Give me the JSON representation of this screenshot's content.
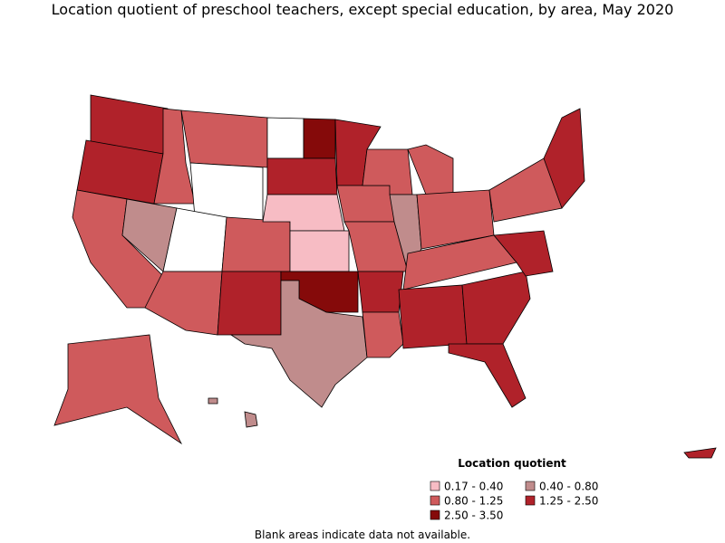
{
  "title": "Location quotient of preschool teachers, except special education, by area, May 2020",
  "legend": {
    "title": "Location quotient",
    "items": [
      {
        "label": "0.17 - 0.40",
        "color": "#f7bcc4"
      },
      {
        "label": "0.40 - 0.80",
        "color": "#c08c8c"
      },
      {
        "label": "0.80 - 1.25",
        "color": "#cf5a5c"
      },
      {
        "label": "1.25 - 2.50",
        "color": "#b0222a"
      },
      {
        "label": "2.50 - 3.50",
        "color": "#850a0a"
      }
    ]
  },
  "note": "Blank areas indicate data not available."
}
